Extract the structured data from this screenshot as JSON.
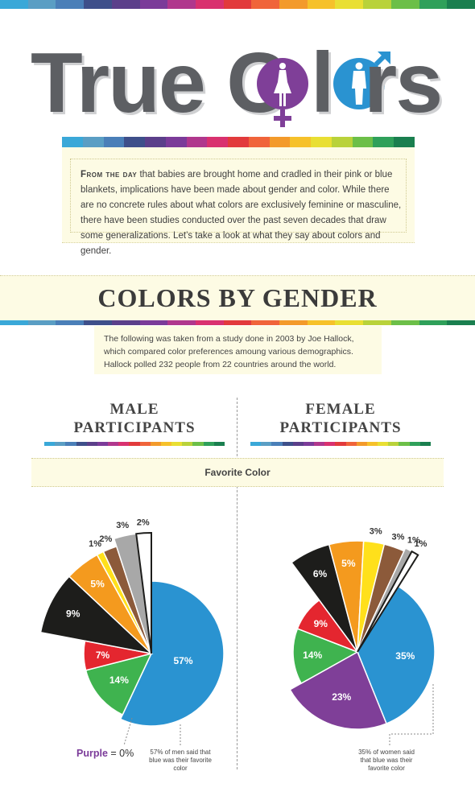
{
  "header": {
    "title_part1": "True C",
    "title_part2": "l",
    "title_part3": "rs",
    "female_symbol_icon": "venus-icon",
    "male_symbol_icon": "mars-icon"
  },
  "palette": [
    "#3aa8d8",
    "#5a9ec4",
    "#4a7fb8",
    "#3e4f8a",
    "#5b3f8a",
    "#7b3b99",
    "#b0378d",
    "#d9316f",
    "#e23a3c",
    "#f0643a",
    "#f39a2b",
    "#f6c12a",
    "#e9df33",
    "#b9d23a",
    "#6cbf48",
    "#2fa05a",
    "#1a7f4f"
  ],
  "intro": {
    "lead": "From the day",
    "text": " that babies are brought home and cradled in their pink or blue blankets, implications have been made about gender and color. While there are no concrete rules about what colors are exclusively feminine or masculine, there have been studies conducted over the past seven decades that draw some generalizations. Let’s take a look at what they say about colors and gender."
  },
  "section": {
    "title": "COLORS BY GENDER",
    "study": "The following was taken from a study done in 2003 by Joe Hallock, which compared color preferences amoung various demographics. Hallock polled 232 people from 22 countries around the world."
  },
  "male": {
    "title_line1": "MALE",
    "title_line2": "PARTICIPANTS",
    "note": "57% of men said that blue was their favorite color",
    "purple_label": "Purple",
    "purple_value": " = 0%"
  },
  "female": {
    "title_line1": "FEMALE",
    "title_line2": "PARTICIPANTS",
    "note": "35% of women said that blue was their favorite color"
  },
  "favorite_color_label": "Favorite Color",
  "chart_data": [
    {
      "type": "pie",
      "title": "MALE PARTICIPANTS",
      "categories": [
        "Blue",
        "Green",
        "Red",
        "Black",
        "Orange",
        "Yellow",
        "Brown",
        "Gray",
        "White",
        "Purple"
      ],
      "values": [
        57,
        14,
        7,
        9,
        5,
        1,
        2,
        3,
        2,
        0
      ],
      "labels": [
        "57%",
        "14%",
        "7%",
        "9%",
        "5%",
        "1%",
        "2%",
        "3%",
        "2%"
      ],
      "colors": [
        "#2a93d1",
        "#3fb34f",
        "#e4262f",
        "#1d1d1b",
        "#f49a1e",
        "#ffe01b",
        "#8c5a3a",
        "#a8a8a8",
        "#ffffff"
      ]
    },
    {
      "type": "pie",
      "title": "FEMALE PARTICIPANTS",
      "categories": [
        "Blue",
        "Purple",
        "Green",
        "Red",
        "Black",
        "Orange",
        "Yellow",
        "Brown",
        "Gray",
        "White"
      ],
      "values": [
        35,
        23,
        14,
        9,
        6,
        5,
        3,
        3,
        1,
        1
      ],
      "labels": [
        "35%",
        "23%",
        "14%",
        "9%",
        "6%",
        "5%",
        "3%",
        "3%",
        "1%",
        "1%"
      ],
      "colors": [
        "#2a93d1",
        "#7f3f98",
        "#3fb34f",
        "#e4262f",
        "#1d1d1b",
        "#f49a1e",
        "#ffe01b",
        "#8c5a3a",
        "#a8a8a8",
        "#ffffff"
      ]
    }
  ]
}
